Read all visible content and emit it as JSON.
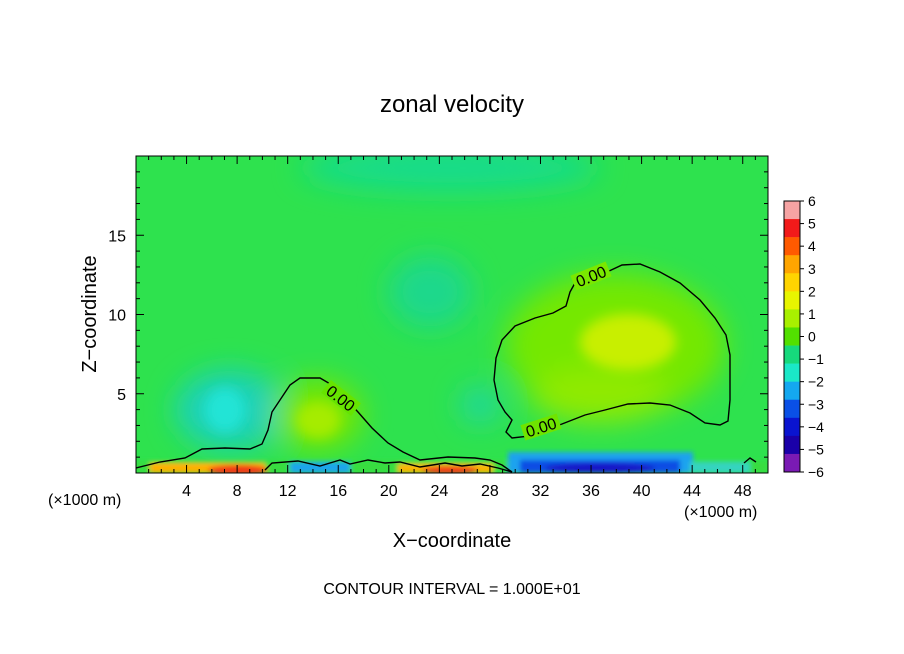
{
  "chart_data": {
    "type": "heatmap",
    "title": "zonal velocity",
    "xlabel": "X−coordinate",
    "ylabel": "Z−coordinate",
    "x_unit_left": "(×1000 m)",
    "x_unit_right": "(×1000 m)",
    "xlim": [
      0,
      50
    ],
    "ylim": [
      0,
      20
    ],
    "x_ticks": [
      "4",
      "8",
      "12",
      "16",
      "20",
      "24",
      "28",
      "32",
      "36",
      "40",
      "44",
      "48"
    ],
    "y_ticks": [
      "5",
      "10",
      "15"
    ],
    "colorbar_ticks": [
      "6",
      "5",
      "4",
      "3",
      "2",
      "1",
      "0",
      "−1",
      "−2",
      "−3",
      "−4",
      "−5",
      "−6"
    ],
    "colorbar_colors": [
      "#f6a3a3",
      "#f21a1a",
      "#ff5a00",
      "#ffa500",
      "#ffd400",
      "#e8f500",
      "#a8f000",
      "#52e000",
      "#16d97c",
      "#1ae8c8",
      "#14a8f0",
      "#0a50e6",
      "#0a14d0",
      "#1a00a8",
      "#7a1ab4"
    ],
    "contour_label": "0.00",
    "contour_interval_text": "CONTOUR INTERVAL =  1.000E+01",
    "features": [
      {
        "name": "positive-core-east",
        "x": 39,
        "z": 8.3,
        "value": 1.3
      },
      {
        "name": "positive-core-west",
        "x": 14,
        "z": 3.6,
        "value": 1.0
      },
      {
        "name": "negative-patch-west",
        "x": 7,
        "z": 3.5,
        "value": -1.8
      },
      {
        "name": "negative-patch-mid",
        "x": 22,
        "z": 11.5,
        "value": -1.0
      },
      {
        "name": "negative-patch-top",
        "x": 22,
        "z": 18.5,
        "value": -1.0
      },
      {
        "name": "surface-positive-west",
        "x": 7,
        "z": 0.4,
        "value": 4.5
      },
      {
        "name": "surface-positive-mid",
        "x": 25,
        "z": 0.4,
        "value": 4.0
      },
      {
        "name": "surface-negative-east",
        "x": 38,
        "z": 0.6,
        "value": -4.0
      }
    ]
  }
}
